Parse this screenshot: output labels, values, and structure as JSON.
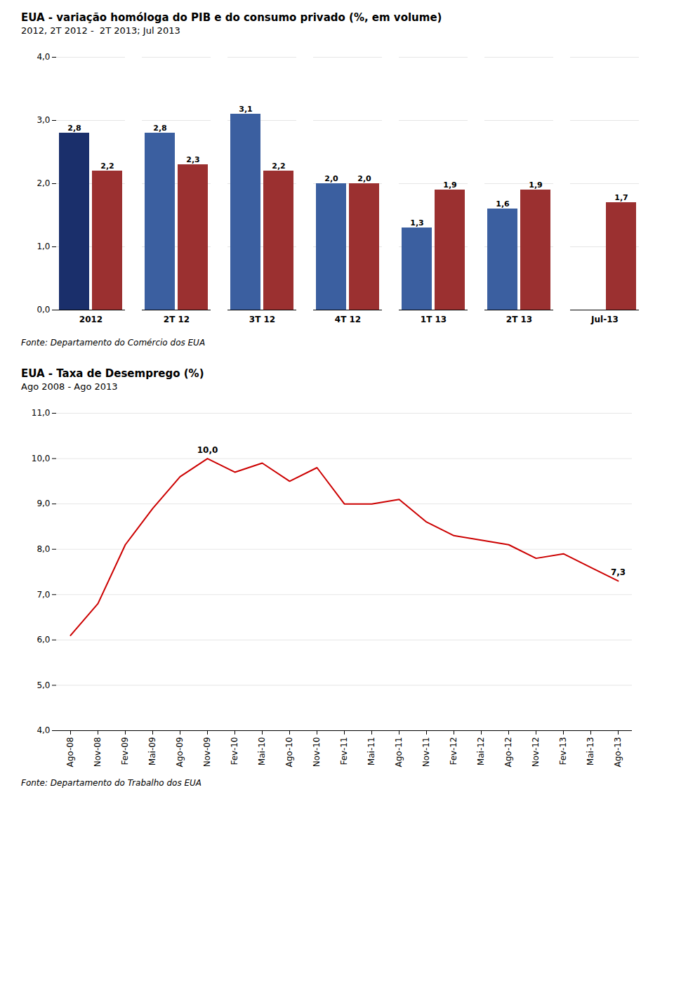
{
  "chart_data": [
    {
      "type": "bar",
      "title": "EUA - variação homóloga do PIB e do consumo privado (%, em volume)",
      "subtitle": "2012, 2T 2012 -  2T 2013; Jul 2013",
      "caption": "Fonte: Departamento do Comércio dos EUA",
      "categories": [
        "2012",
        "2T 12",
        "3T 12",
        "4T 12",
        "1T 13",
        "2T 13",
        "Jul-13"
      ],
      "series": [
        {
          "color": "#3B5FA0",
          "colors": [
            "#1A2F6B",
            "#3B5FA0",
            "#3B5FA0",
            "#3B5FA0",
            "#3B5FA0",
            "#3B5FA0",
            "#3B5FA0"
          ],
          "values": [
            2.8,
            2.8,
            3.1,
            2.0,
            1.3,
            1.6,
            null
          ],
          "value_labels": [
            "2,8",
            "2,8",
            "3,1",
            "2,0",
            "1,3",
            "1,6",
            null
          ]
        },
        {
          "color": "#9B3030",
          "values": [
            2.2,
            2.3,
            2.2,
            2.0,
            1.9,
            1.9,
            1.7
          ],
          "value_labels": [
            "2,2",
            "2,3",
            "2,2",
            "2,0",
            "1,9",
            "1,9",
            "1,7"
          ]
        }
      ],
      "ylim": [
        0.0,
        4.0
      ],
      "yticks": [
        {
          "value": 0.0,
          "label": "0,0"
        },
        {
          "value": 1.0,
          "label": "1,0"
        },
        {
          "value": 2.0,
          "label": "2,0"
        },
        {
          "value": 3.0,
          "label": "3,0"
        },
        {
          "value": 4.0,
          "label": "4,0"
        }
      ],
      "grid": true,
      "data_labels": true
    },
    {
      "type": "line",
      "title": "EUA - Taxa de Desemprego (%)",
      "subtitle": "Ago 2008 - Ago 2013",
      "caption": "Fonte: Departamento do Trabalho dos EUA",
      "categories": [
        "Ago-08",
        "Nov-08",
        "Fev-09",
        "Mai-09",
        "Ago-09",
        "Nov-09",
        "Fev-10",
        "Mai-10",
        "Ago-10",
        "Nov-10",
        "Fev-11",
        "Mai-11",
        "Ago-11",
        "Nov-11",
        "Fev-12",
        "Mai-12",
        "Ago-12",
        "Nov-12",
        "Fev-13",
        "Mai-13",
        "Ago-13"
      ],
      "values": [
        6.1,
        6.8,
        8.1,
        8.9,
        9.6,
        10.0,
        9.7,
        9.9,
        9.5,
        9.8,
        9.0,
        9.0,
        9.1,
        8.6,
        8.3,
        8.2,
        8.1,
        7.8,
        7.9,
        7.6,
        7.3
      ],
      "color": "#CC0000",
      "ylim": [
        4.0,
        11.0
      ],
      "yticks": [
        {
          "value": 4.0,
          "label": "4,0"
        },
        {
          "value": 5.0,
          "label": "5,0"
        },
        {
          "value": 6.0,
          "label": "6,0"
        },
        {
          "value": 7.0,
          "label": "7,0"
        },
        {
          "value": 8.0,
          "label": "8,0"
        },
        {
          "value": 9.0,
          "label": "9,0"
        },
        {
          "value": 10.0,
          "label": "10,0"
        },
        {
          "value": 11.0,
          "label": "11,0"
        }
      ],
      "grid": true,
      "annotations": [
        {
          "text": "10,0",
          "x": "Nov-09",
          "y": 10.0
        },
        {
          "text": "7,3",
          "x": "Ago-13",
          "y": 7.3
        }
      ]
    }
  ]
}
